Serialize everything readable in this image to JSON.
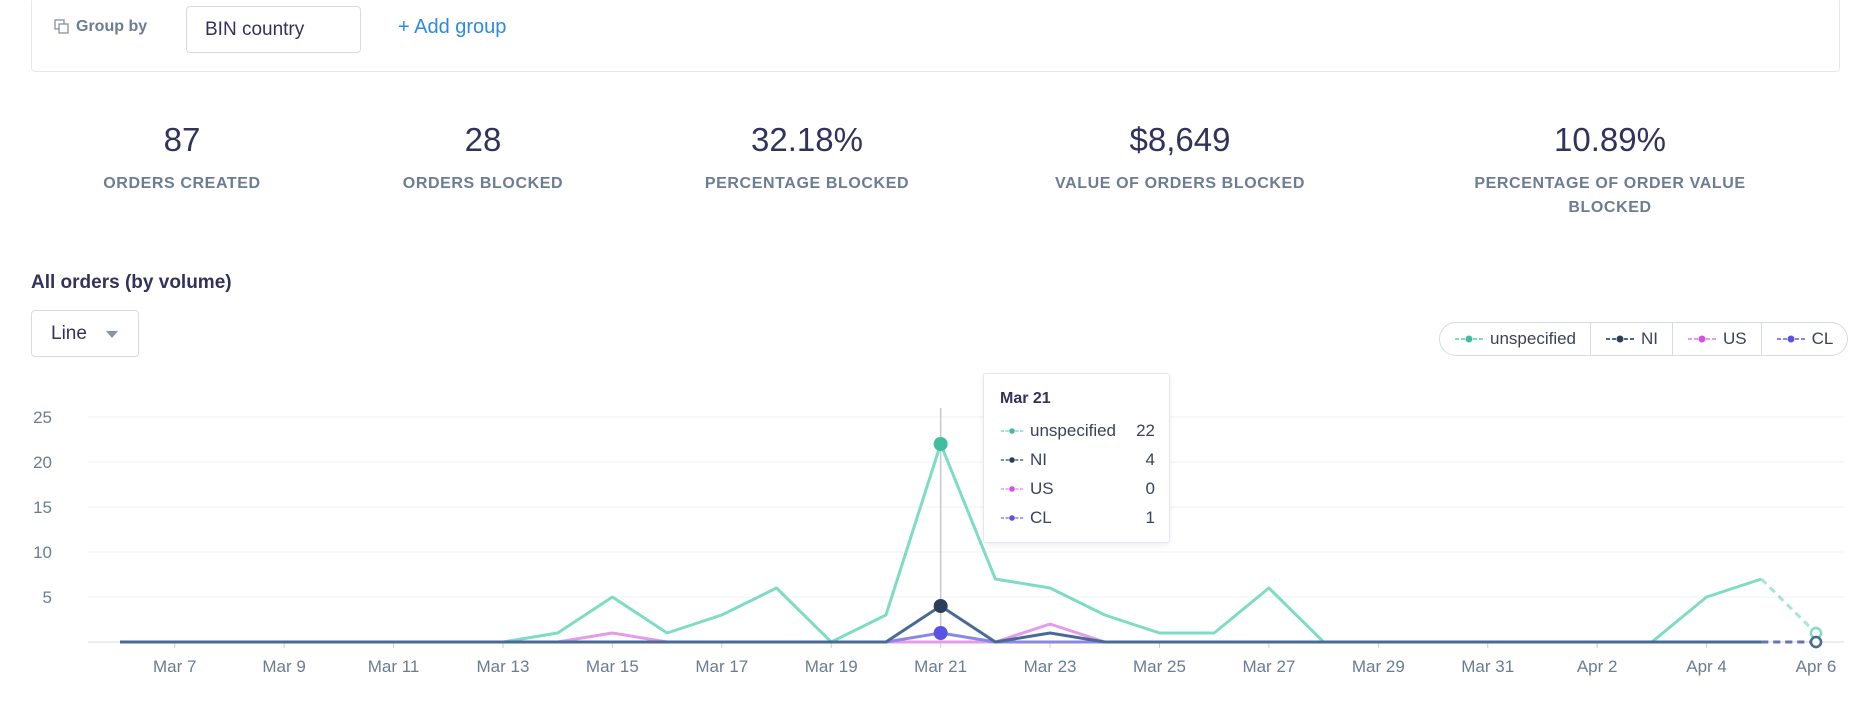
{
  "filter": {
    "group_by_label": "Group by",
    "group_by_value": "BIN country",
    "add_group_label": "+ Add group"
  },
  "metrics": [
    {
      "value": "87",
      "label": "ORDERS CREATED"
    },
    {
      "value": "28",
      "label": "ORDERS BLOCKED"
    },
    {
      "value": "32.18%",
      "label": "PERCENTAGE BLOCKED"
    },
    {
      "value": "$8,649",
      "label": "VALUE OF ORDERS BLOCKED"
    },
    {
      "value": "10.89%",
      "label": "PERCENTAGE OF ORDER VALUE BLOCKED"
    }
  ],
  "chart_section": {
    "title": "All orders (by volume)",
    "chart_type_select": "Line"
  },
  "legend": [
    {
      "name": "unspecified",
      "color": "#7fdcc4",
      "dot": "#3fbf9f"
    },
    {
      "name": "NI",
      "color": "#4a6a96",
      "dot": "#2c3e5a"
    },
    {
      "name": "US",
      "color": "#e59be9",
      "dot": "#d152e0"
    },
    {
      "name": "CL",
      "color": "#8a88e6",
      "dot": "#5b52e0"
    }
  ],
  "tooltip": {
    "date": "Mar 21",
    "rows": [
      {
        "name": "unspecified",
        "value": "22"
      },
      {
        "name": "NI",
        "value": "4"
      },
      {
        "name": "US",
        "value": "0"
      },
      {
        "name": "CL",
        "value": "1"
      }
    ]
  },
  "chart_data": {
    "type": "line",
    "x": [
      "Mar 6",
      "Mar 7",
      "Mar 8",
      "Mar 9",
      "Mar 10",
      "Mar 11",
      "Mar 12",
      "Mar 13",
      "Mar 14",
      "Mar 15",
      "Mar 16",
      "Mar 17",
      "Mar 18",
      "Mar 19",
      "Mar 20",
      "Mar 21",
      "Mar 22",
      "Mar 23",
      "Mar 24",
      "Mar 25",
      "Mar 26",
      "Mar 27",
      "Mar 28",
      "Mar 29",
      "Mar 30",
      "Mar 31",
      "Apr 1",
      "Apr 2",
      "Apr 3",
      "Apr 4",
      "Apr 5",
      "Apr 6"
    ],
    "x_tick_labels": [
      "Mar 7",
      "Mar 9",
      "Mar 11",
      "Mar 13",
      "Mar 15",
      "Mar 17",
      "Mar 19",
      "Mar 21",
      "Mar 23",
      "Mar 25",
      "Mar 27",
      "Mar 29",
      "Mar 31",
      "Apr 2",
      "Apr 4",
      "Apr 6"
    ],
    "y_ticks": [
      5,
      10,
      15,
      20,
      25
    ],
    "ylim": [
      0,
      25
    ],
    "grid": true,
    "legend_position": "top-right",
    "last_point_partial": true,
    "series": [
      {
        "name": "unspecified",
        "values": [
          0,
          0,
          0,
          0,
          0,
          0,
          0,
          0,
          1,
          5,
          1,
          3,
          6,
          0,
          3,
          22,
          7,
          6,
          3,
          1,
          1,
          6,
          0,
          0,
          0,
          0,
          0,
          0,
          0,
          5,
          7,
          1
        ]
      },
      {
        "name": "NI",
        "values": [
          0,
          0,
          0,
          0,
          0,
          0,
          0,
          0,
          0,
          0,
          0,
          0,
          0,
          0,
          0,
          4,
          0,
          1,
          0,
          0,
          0,
          0,
          0,
          0,
          0,
          0,
          0,
          0,
          0,
          0,
          0,
          0
        ]
      },
      {
        "name": "US",
        "values": [
          0,
          0,
          0,
          0,
          0,
          0,
          0,
          0,
          0,
          1,
          0,
          0,
          0,
          0,
          0,
          0,
          0,
          2,
          0,
          0,
          0,
          0,
          0,
          0,
          0,
          0,
          0,
          0,
          0,
          0,
          0,
          0
        ]
      },
      {
        "name": "CL",
        "values": [
          0,
          0,
          0,
          0,
          0,
          0,
          0,
          0,
          0,
          0,
          0,
          0,
          0,
          0,
          0,
          1,
          0,
          0,
          0,
          0,
          0,
          0,
          0,
          0,
          0,
          0,
          0,
          0,
          0,
          0,
          0,
          0
        ]
      }
    ],
    "highlight_index": 15
  }
}
